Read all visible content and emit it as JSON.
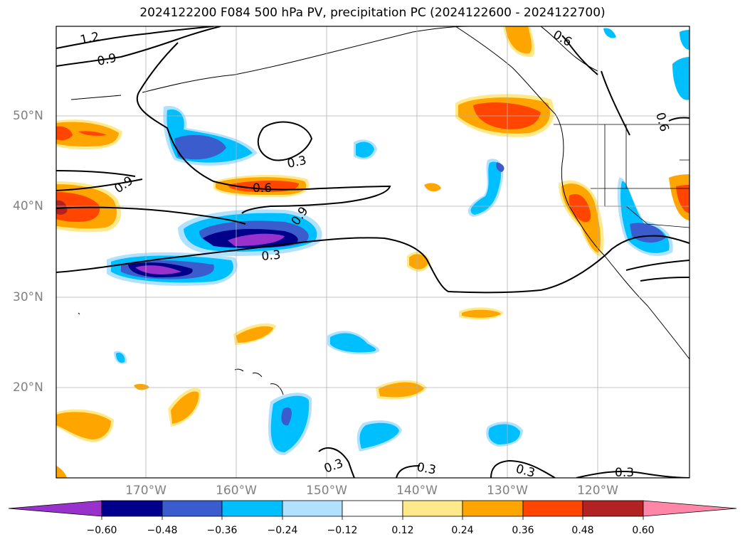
{
  "title": "2024122200 F084 500 hPa PV, precipitation PC (2024122600 - 2024122700)",
  "map": {
    "lon_range": [
      -180,
      -110
    ],
    "lat_range": [
      10,
      60
    ],
    "lon_ticks": [
      -170,
      -160,
      -150,
      -140,
      -130,
      -120
    ],
    "lat_ticks": [
      20,
      30,
      40,
      50
    ],
    "lon_labels": [
      "170°W",
      "160°W",
      "150°W",
      "140°W",
      "130°W",
      "120°W"
    ],
    "lat_labels": [
      "20°N",
      "30°N",
      "40°N",
      "50°N"
    ],
    "grid": true
  },
  "contour_labels": [
    "1.2",
    "0.9",
    "0.6",
    "0.3",
    "0.9",
    "0.6",
    "0.9",
    "0.3",
    "0.6",
    "0.3",
    "0.3",
    "0.3",
    "0.3"
  ],
  "colorbar": {
    "levels": [
      "−0.60",
      "−0.48",
      "−0.36",
      "−0.24",
      "−0.12",
      "0.12",
      "0.24",
      "0.36",
      "0.48",
      "0.60"
    ],
    "colors": [
      "#9932cc",
      "#00008b",
      "#3a5ccc",
      "#00bfff",
      "#b0e2ff",
      "#ffffff",
      "#ffe98a",
      "#ffa500",
      "#ff4500",
      "#b22222",
      "#ff86a6"
    ],
    "extend": "both"
  }
}
